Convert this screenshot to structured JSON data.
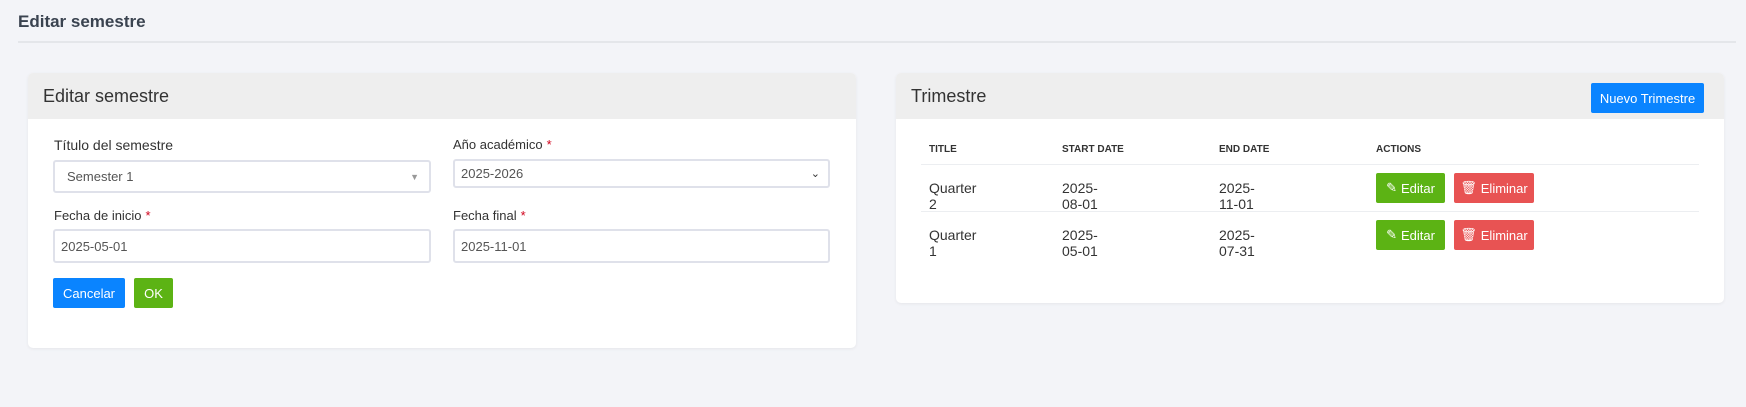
{
  "page": {
    "title": "Editar semestre"
  },
  "form_card": {
    "title": "Editar semestre",
    "semester_title": {
      "label": "Título del semestre",
      "value": "Semester 1"
    },
    "academic_year": {
      "label": "Año académico",
      "required": "*",
      "value": "2025-2026"
    },
    "start_date": {
      "label": "Fecha de inicio",
      "required": "*",
      "value": "2025-05-01"
    },
    "end_date": {
      "label": "Fecha final",
      "required": "*",
      "value": "2025-11-01"
    },
    "cancel_label": "Cancelar",
    "ok_label": "OK"
  },
  "quarter_card": {
    "title": "Trimestre",
    "new_label": "Nuevo Trimestre",
    "columns": [
      "TITLE",
      "START DATE",
      "END DATE",
      "ACTIONS"
    ],
    "rows": [
      {
        "title": "Quarter 2",
        "start": "2025-08-01",
        "end": "2025-11-01",
        "edit": "Editar",
        "delete": "Eliminar"
      },
      {
        "title": "Quarter 1",
        "start": "2025-05-01",
        "end": "2025-07-31",
        "edit": "Editar",
        "delete": "Eliminar"
      }
    ]
  },
  "colors": {
    "primary": "#0a84ff",
    "success": "#5cb314",
    "danger": "#e85353"
  }
}
